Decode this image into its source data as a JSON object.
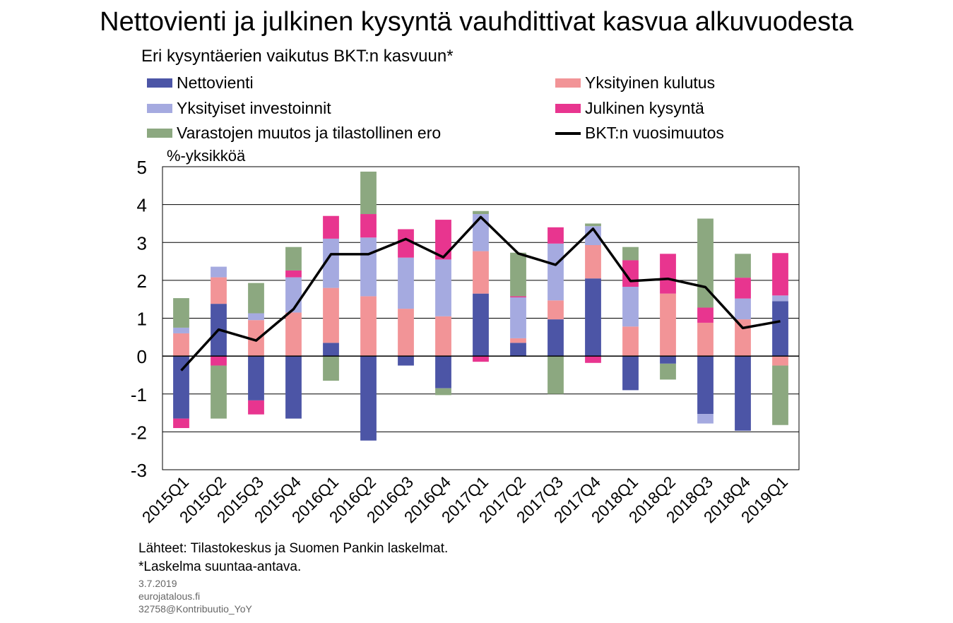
{
  "title": "Nettovienti ja julkinen kysyntä vauhdittivat kasvua alkuvuodesta",
  "subtitle": "Eri kysyntäerien vaikutus BKT:n kasvuun*",
  "unit_label": "%-yksikköä",
  "footnotes": {
    "source": "Lähteet: Tilastokeskus ja Suomen Pankin laskelmat.",
    "note": "*Laskelma suuntaa-antava.",
    "date": "3.7.2019",
    "site": "eurojatalous.fi",
    "id": "32758@Kontribuutio_YoY"
  },
  "chart_data": {
    "type": "bar",
    "stacked": true,
    "categories": [
      "2015Q1",
      "2015Q2",
      "2015Q3",
      "2015Q4",
      "2016Q1",
      "2016Q2",
      "2016Q3",
      "2016Q4",
      "2017Q1",
      "2017Q2",
      "2017Q3",
      "2017Q4",
      "2018Q1",
      "2018Q2",
      "2018Q3",
      "2018Q4",
      "2019Q1"
    ],
    "ylim": [
      -3,
      5
    ],
    "yticks": [
      -3,
      -2,
      -1,
      0,
      1,
      2,
      3,
      4,
      5
    ],
    "grid": true,
    "legend_position": "top",
    "series": [
      {
        "name": "Nettovienti",
        "kind": "bar",
        "color": "#4c55a6",
        "values": [
          -1.65,
          1.38,
          -1.17,
          -1.65,
          0.35,
          -2.23,
          -0.25,
          -0.85,
          1.65,
          0.35,
          0.97,
          2.05,
          -0.9,
          -0.2,
          -1.53,
          -1.97,
          1.45
        ]
      },
      {
        "name": "Yksityinen kulutus",
        "kind": "bar",
        "color": "#f29497",
        "values": [
          0.6,
          0.7,
          0.95,
          1.15,
          1.45,
          1.58,
          1.25,
          1.05,
          1.12,
          0.12,
          0.5,
          0.88,
          0.78,
          1.65,
          0.88,
          0.97,
          -0.25
        ]
      },
      {
        "name": "Yksityiset investoinnit",
        "kind": "bar",
        "color": "#a5aae0",
        "values": [
          0.15,
          0.28,
          0.18,
          0.93,
          1.3,
          1.55,
          1.35,
          1.5,
          0.98,
          1.08,
          1.5,
          0.5,
          1.05,
          0.0,
          -0.25,
          0.55,
          0.15
        ]
      },
      {
        "name": "Julkinen kysyntä",
        "kind": "bar",
        "color": "#e8358f",
        "values": [
          -0.25,
          -0.25,
          -0.37,
          0.18,
          0.6,
          0.62,
          0.75,
          1.05,
          -0.15,
          0.03,
          0.43,
          -0.18,
          0.7,
          1.05,
          0.4,
          0.55,
          1.12
        ]
      },
      {
        "name": "Varastojen muutos ja tilastollinen ero",
        "kind": "bar",
        "color": "#8ca880",
        "values": [
          0.78,
          -1.4,
          0.8,
          0.62,
          -0.65,
          1.12,
          0.0,
          -0.18,
          0.08,
          1.15,
          -1.0,
          0.07,
          0.35,
          -0.42,
          2.35,
          0.63,
          -1.57
        ]
      },
      {
        "name": "BKT:n vuosimuutos",
        "kind": "line",
        "color": "#000000",
        "values": [
          -0.38,
          0.7,
          0.41,
          1.24,
          2.69,
          2.69,
          3.09,
          2.61,
          3.67,
          2.71,
          2.41,
          3.36,
          1.98,
          2.04,
          1.82,
          0.74,
          0.92
        ]
      }
    ]
  }
}
